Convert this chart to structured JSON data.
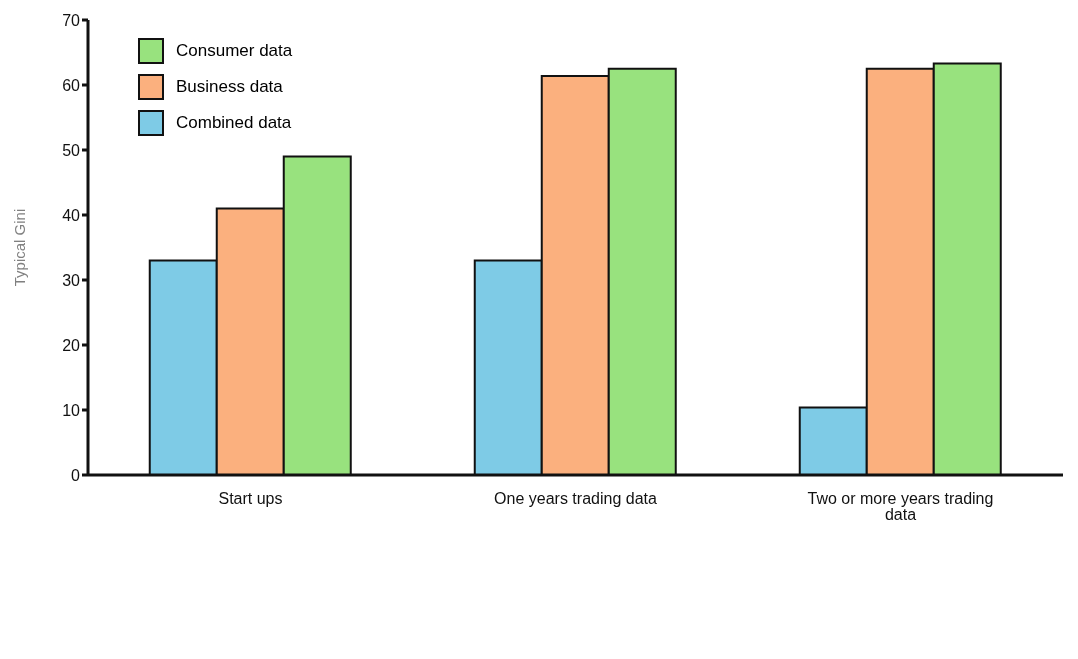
{
  "chart_data": {
    "type": "bar",
    "ylabel": "Typical Gini",
    "categories": [
      "Start ups",
      "One years trading data",
      "Two or more years trading data"
    ],
    "series": [
      {
        "name": "Combined data",
        "color": "#7ecbe6",
        "values": [
          33,
          33,
          10.4
        ]
      },
      {
        "name": "Business data",
        "color": "#fbb07e",
        "values": [
          41,
          61.4,
          62.5
        ]
      },
      {
        "name": "Consumer data",
        "color": "#98e27e",
        "values": [
          49,
          62.5,
          63.3
        ]
      }
    ],
    "ylim": [
      0,
      70
    ],
    "yticks": [
      0,
      10,
      20,
      30,
      40,
      50,
      60,
      70
    ],
    "grid": false,
    "legend": "top left"
  }
}
